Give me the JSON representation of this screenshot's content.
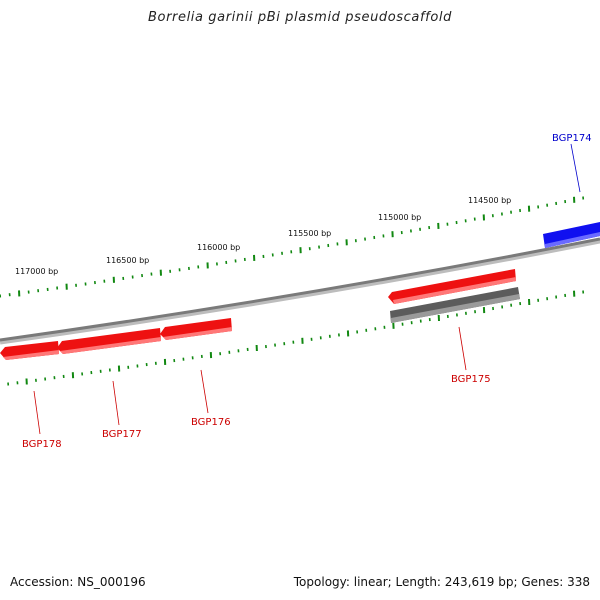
{
  "title": "Borrelia garinii pBi plasmid pseudoscaffold",
  "footer": {
    "accession_label": "Accession: NS_000196",
    "summary": "Topology: linear; Length: 243,619 bp; Genes: 338"
  },
  "scale_ticks": [
    "117000 bp",
    "116500 bp",
    "116000 bp",
    "115500 bp",
    "115000 bp",
    "114500 bp"
  ],
  "genes": [
    {
      "name": "BGP174",
      "strand": "forward",
      "color": "#0000ee",
      "label_color": "#0000cc"
    },
    {
      "name": "BGP175",
      "strand": "reverse",
      "color": "#ee0000",
      "label_color": "#cc0000"
    },
    {
      "name": "BGP176",
      "strand": "reverse",
      "color": "#ee0000",
      "label_color": "#cc0000"
    },
    {
      "name": "BGP177",
      "strand": "reverse",
      "color": "#ee0000",
      "label_color": "#cc0000"
    },
    {
      "name": "BGP178",
      "strand": "reverse",
      "color": "#ee0000",
      "label_color": "#cc0000"
    }
  ],
  "colors": {
    "backbone": "#7a7a7a",
    "tick": "#118811",
    "reverse_gene": "#ee0000",
    "forward_gene": "#0000ee",
    "pseudogene": "#666666"
  }
}
